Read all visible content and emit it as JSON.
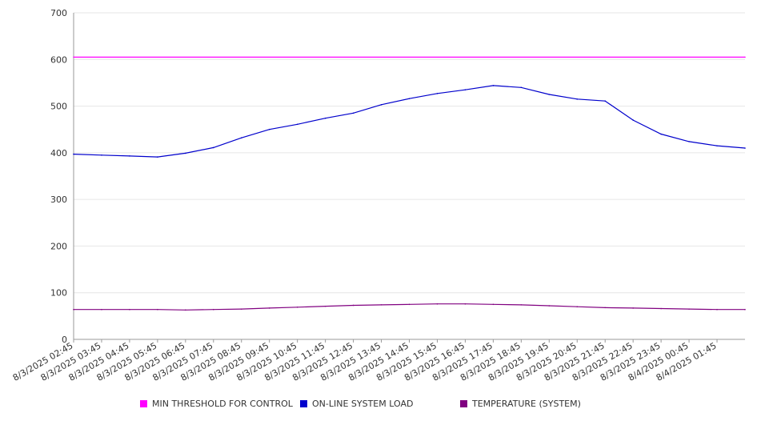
{
  "chart_data": {
    "type": "line",
    "title": "",
    "xlabel": "",
    "ylabel": "",
    "ylim": [
      0,
      700
    ],
    "yticks": [
      0,
      100,
      200,
      300,
      400,
      500,
      600,
      700
    ],
    "grid": true,
    "legend_position": "bottom",
    "x_tick_labels": [
      "8/3/2025 02:45",
      "8/3/2025 03:45",
      "8/3/2025 04:45",
      "8/3/2025 05:45",
      "8/3/2025 06:45",
      "8/3/2025 07:45",
      "8/3/2025 08:45",
      "8/3/2025 09:45",
      "8/3/2025 10:45",
      "8/3/2025 11:45",
      "8/3/2025 12:45",
      "8/3/2025 13:45",
      "8/3/2025 14:45",
      "8/3/2025 15:45",
      "8/3/2025 16:45",
      "8/3/2025 17:45",
      "8/3/2025 18:45",
      "8/3/2025 19:45",
      "8/3/2025 20:45",
      "8/3/2025 21:45",
      "8/3/2025 22:45",
      "8/3/2025 23:45",
      "8/4/2025 00:45",
      "8/4/2025 01:45"
    ],
    "x_end": "8/4/2025 02:45",
    "series": [
      {
        "name": "MIN THRESHOLD FOR CONTROL",
        "color": "#ff00ff",
        "x": [
          "8/3/2025 02:45",
          "8/4/2025 02:45"
        ],
        "values": [
          605,
          605
        ]
      },
      {
        "name": "ON-LINE SYSTEM LOAD",
        "color": "#0000cc",
        "x": [
          "8/3/2025 02:45",
          "8/3/2025 03:45",
          "8/3/2025 04:45",
          "8/3/2025 05:45",
          "8/3/2025 06:45",
          "8/3/2025 07:45",
          "8/3/2025 08:45",
          "8/3/2025 09:45",
          "8/3/2025 10:45",
          "8/3/2025 11:45",
          "8/3/2025 12:45",
          "8/3/2025 13:45",
          "8/3/2025 14:45",
          "8/3/2025 15:45",
          "8/3/2025 16:45",
          "8/3/2025 17:45",
          "8/3/2025 18:45",
          "8/3/2025 19:45",
          "8/3/2025 20:45",
          "8/3/2025 21:45",
          "8/3/2025 22:45",
          "8/3/2025 23:45",
          "8/4/2025 00:45",
          "8/4/2025 01:45",
          "8/4/2025 02:45"
        ],
        "values": [
          397,
          395,
          393,
          391,
          399,
          411,
          432,
          450,
          461,
          474,
          485,
          503,
          516,
          527,
          535,
          544,
          540,
          525,
          515,
          511,
          470,
          440,
          424,
          415,
          410
        ]
      },
      {
        "name": "TEMPERATURE (SYSTEM)",
        "color": "#800080",
        "x": [
          "8/3/2025 02:45",
          "8/3/2025 03:45",
          "8/3/2025 04:45",
          "8/3/2025 05:45",
          "8/3/2025 06:45",
          "8/3/2025 07:45",
          "8/3/2025 08:45",
          "8/3/2025 09:45",
          "8/3/2025 10:45",
          "8/3/2025 11:45",
          "8/3/2025 12:45",
          "8/3/2025 13:45",
          "8/3/2025 14:45",
          "8/3/2025 15:45",
          "8/3/2025 16:45",
          "8/3/2025 17:45",
          "8/3/2025 18:45",
          "8/3/2025 19:45",
          "8/3/2025 20:45",
          "8/3/2025 21:45",
          "8/3/2025 22:45",
          "8/3/2025 23:45",
          "8/4/2025 00:45",
          "8/4/2025 01:45",
          "8/4/2025 02:45"
        ],
        "values": [
          64,
          64,
          64,
          64,
          63,
          64,
          65,
          67,
          69,
          71,
          73,
          74,
          75,
          76,
          76,
          75,
          74,
          72,
          70,
          68,
          67,
          66,
          65,
          64,
          64
        ]
      }
    ]
  }
}
